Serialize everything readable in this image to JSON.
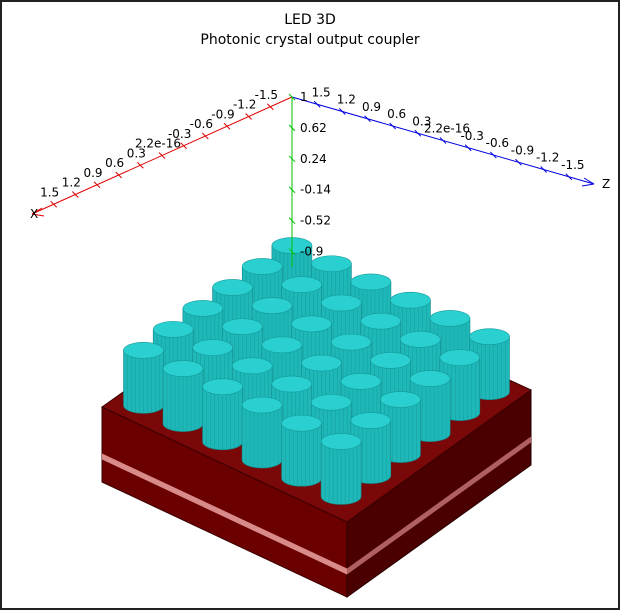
{
  "title": "LED 3D",
  "subtitle": "Photonic crystal output coupler",
  "axes": {
    "x": {
      "label": "X",
      "ticks": [
        "1.5",
        "1.2",
        "0.9",
        "0.6",
        "0.3",
        "2.2e-16",
        "-0.3",
        "-0.6",
        "-0.9",
        "-1.2",
        "-1.5"
      ]
    },
    "y": {
      "ticks": [
        "1",
        "0.62",
        "0.24",
        "-0.14",
        "-0.52",
        "-0.9"
      ]
    },
    "z": {
      "label": "Z",
      "ticks": [
        "-1.5",
        "-1.2",
        "-0.9",
        "-0.6",
        "-0.3",
        "2.2e-16",
        "0.3",
        "0.6",
        "0.9",
        "1.2",
        "1.5"
      ]
    }
  }
}
